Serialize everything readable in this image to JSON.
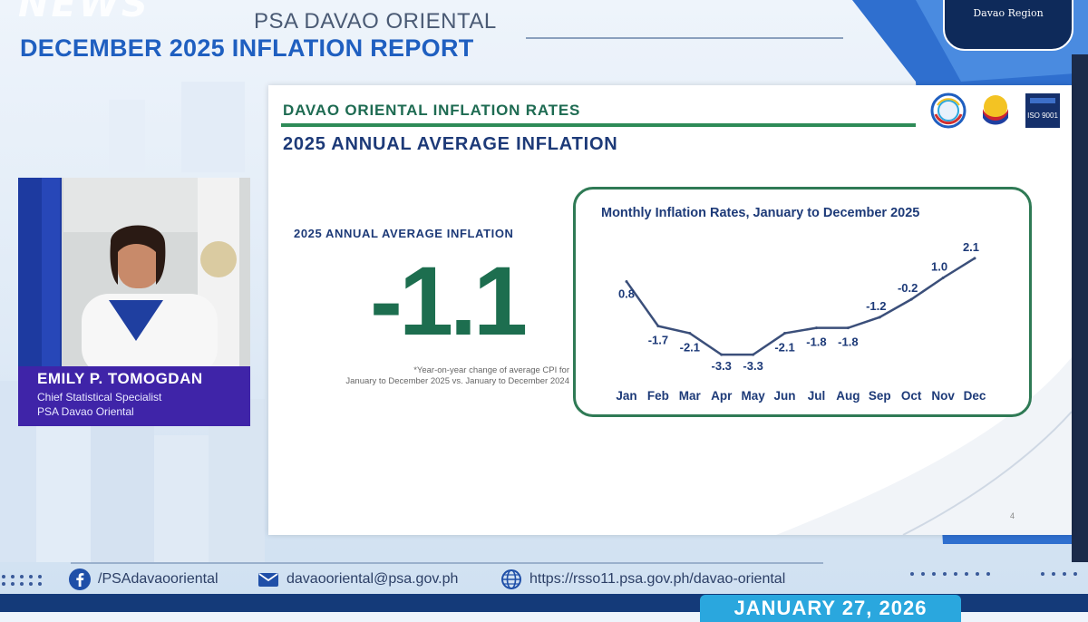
{
  "watermark": "NEWS",
  "header": {
    "org": "PSA DAVAO ORIENTAL",
    "report_title": "DECEMBER 2025 INFLATION REPORT",
    "region_badge": "Davao Region"
  },
  "slide": {
    "title": "DAVAO ORIENTAL INFLATION RATES",
    "subtitle": "2025 ANNUAL AVERAGE INFLATION",
    "annual_label": "2025 ANNUAL AVERAGE INFLATION",
    "annual_value": "-1.1",
    "footnote_line1": "*Year-on-year change of average CPI for",
    "footnote_line2": "January to December 2025 vs. January to December 2024",
    "page_number": "4",
    "logos": [
      "psa-seal-logo",
      "bagong-pilipinas-logo",
      "iso-9001-logo"
    ]
  },
  "chart_data": {
    "type": "line",
    "title": "Monthly Inflation Rates, January to December 2025",
    "categories": [
      "Jan",
      "Feb",
      "Mar",
      "Apr",
      "May",
      "Jun",
      "Jul",
      "Aug",
      "Sep",
      "Oct",
      "Nov",
      "Dec"
    ],
    "values": [
      0.8,
      -1.7,
      -2.1,
      -3.3,
      -3.3,
      -2.1,
      -1.8,
      -1.8,
      -1.2,
      -0.2,
      1.0,
      2.1
    ],
    "labels": [
      "0.8",
      "-1.7",
      "-2.1",
      "-3.3",
      "-3.3",
      "-2.1",
      "-1.8",
      "-1.8",
      "-1.2",
      "-0.2",
      "1.0",
      "2.1"
    ],
    "ylim": [
      -3.8,
      2.6
    ],
    "line_color": "#3b4f7a",
    "grid": false,
    "legend": "none"
  },
  "speaker": {
    "name": "EMILY P. TOMOGDAN",
    "position": "Chief Statistical Specialist",
    "office": "PSA Davao Oriental"
  },
  "footer": {
    "facebook": "/PSAdavaooriental",
    "email": "davaooriental@psa.gov.ph",
    "website": "https://rsso11.psa.gov.ph/davao-oriental"
  },
  "date": "JANUARY 27, 2026",
  "colors": {
    "primary_blue": "#1f5fc0",
    "navy": "#1d3a78",
    "green": "#1d6e4f",
    "nameplate": "#3f24a8",
    "date_box": "#2aa7de"
  }
}
